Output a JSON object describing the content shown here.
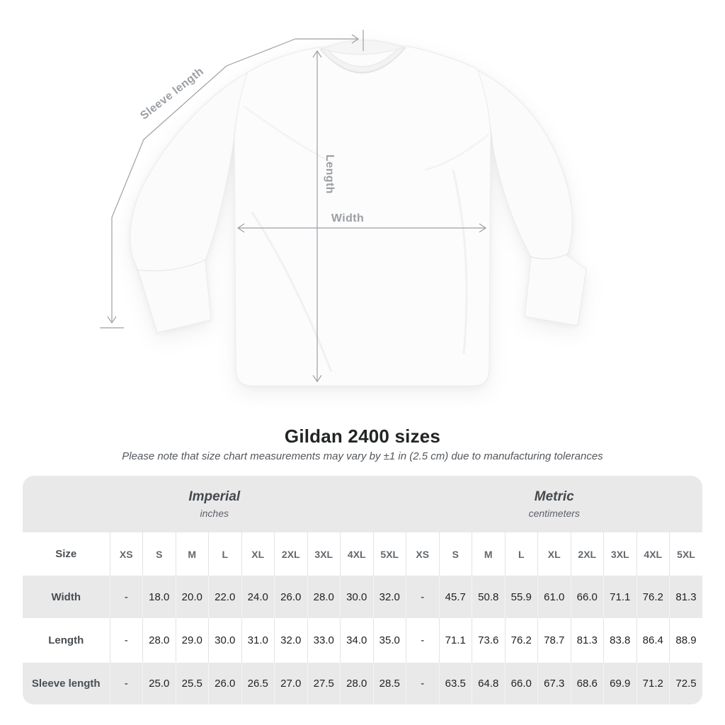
{
  "title": "Gildan 2400 sizes",
  "subtitle": "Please note that size chart measurements may vary by ±1 in (2.5 cm) due to manufacturing tolerances",
  "diagram": {
    "labels": {
      "sleeve_length": "Sleeve length",
      "length": "Length",
      "width": "Width"
    }
  },
  "table": {
    "groups": [
      {
        "label": "Imperial",
        "unit": "inches"
      },
      {
        "label": "Metric",
        "unit": "centimeters"
      }
    ],
    "size_header": "Size",
    "columns": [
      "XS",
      "S",
      "M",
      "L",
      "XL",
      "2XL",
      "3XL",
      "4XL",
      "5XL",
      "XS",
      "S",
      "M",
      "L",
      "XL",
      "2XL",
      "3XL",
      "4XL",
      "5XL"
    ],
    "rows": [
      {
        "label": "Width",
        "values": [
          "-",
          "18.0",
          "20.0",
          "22.0",
          "24.0",
          "26.0",
          "28.0",
          "30.0",
          "32.0",
          "-",
          "45.7",
          "50.8",
          "55.9",
          "61.0",
          "66.0",
          "71.1",
          "76.2",
          "81.3"
        ]
      },
      {
        "label": "Length",
        "values": [
          "-",
          "28.0",
          "29.0",
          "30.0",
          "31.0",
          "32.0",
          "33.0",
          "34.0",
          "35.0",
          "-",
          "71.1",
          "73.6",
          "76.2",
          "78.7",
          "81.3",
          "83.8",
          "86.4",
          "88.9"
        ]
      },
      {
        "label": "Sleeve length",
        "values": [
          "-",
          "25.0",
          "25.5",
          "26.0",
          "26.5",
          "27.0",
          "27.5",
          "28.0",
          "28.5",
          "-",
          "63.5",
          "64.8",
          "66.0",
          "67.3",
          "68.6",
          "69.9",
          "71.2",
          "72.5"
        ]
      }
    ]
  },
  "colors": {
    "band_gray": "#e9e9ea",
    "measure_gray": "#9ba0a5",
    "value_text": "#1f2022"
  }
}
